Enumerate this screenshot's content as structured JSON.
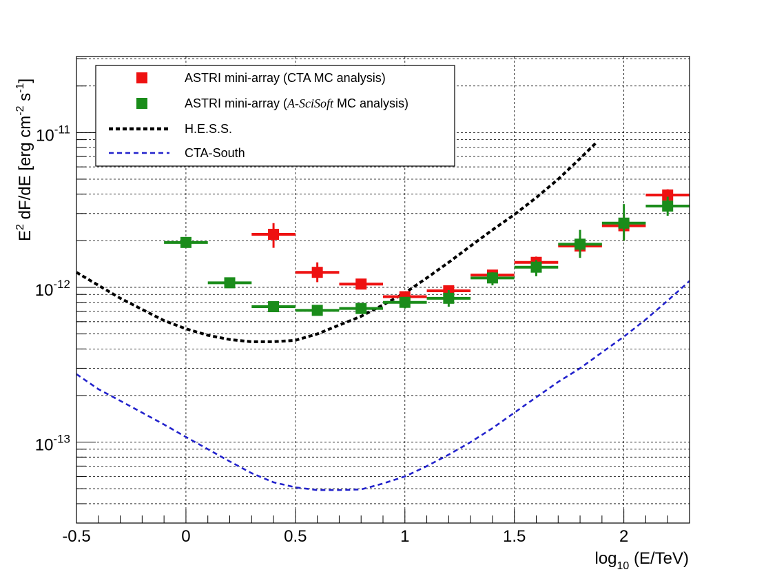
{
  "chart_data": {
    "type": "scatter",
    "title": "",
    "xlabel": {
      "main": "log",
      "sub": "10",
      "rest": " (E/TeV)"
    },
    "ylabel": {
      "a": "E",
      "a_sup": "2",
      "b": " dF/dE [erg cm",
      "b_sup": "-2",
      "c": " s",
      "c_sup": "-1",
      "d": "]"
    },
    "xlim": [
      -0.5,
      2.3
    ],
    "ylim": [
      3e-14,
      3.1e-11
    ],
    "yscale": "log",
    "grid": true,
    "x_ticks": [
      -0.5,
      0,
      0.5,
      1,
      1.5,
      2
    ],
    "x_tick_labels": [
      "-0.5",
      "0",
      "0.5",
      "1",
      "1.5",
      "2"
    ],
    "y_ticks": [
      1e-13,
      1e-12,
      1e-11
    ],
    "y_tick_labels": [
      {
        "base": "10",
        "exp": "-13"
      },
      {
        "base": "10",
        "exp": "-12"
      },
      {
        "base": "10",
        "exp": "-11"
      }
    ],
    "legend_position": "top-left",
    "legend": [
      {
        "label_parts": [
          {
            "t": "ASTRI mini-array (CTA MC analysis)",
            "italic": false
          }
        ],
        "color": "#ee1111",
        "kind": "marker"
      },
      {
        "label_parts": [
          {
            "t": "ASTRI mini-array (",
            "italic": false
          },
          {
            "t": "A-SciSoft",
            "italic": true
          },
          {
            "t": " MC analysis)",
            "italic": false
          }
        ],
        "color": "#1a8c1a",
        "kind": "marker"
      },
      {
        "label_parts": [
          {
            "t": "H.E.S.S.",
            "italic": false
          }
        ],
        "color": "#000000",
        "kind": "dashed-thick"
      },
      {
        "label_parts": [
          {
            "t": "CTA-South",
            "italic": false
          }
        ],
        "color": "#2222cc",
        "kind": "dashed-thin"
      }
    ],
    "series": [
      {
        "name": "ASTRI mini-array (CTA MC analysis)",
        "kind": "points",
        "color": "#ee1111",
        "x": [
          0.4,
          0.6,
          0.8,
          1.0,
          1.2,
          1.4,
          1.6,
          1.8,
          2.0,
          2.2
        ],
        "y": [
          2.2e-12,
          1.25e-12,
          1.05e-12,
          8.7e-13,
          9.5e-13,
          1.2e-12,
          1.45e-12,
          1.85e-12,
          2.5e-12,
          3.95e-12
        ],
        "x_err": 0.1,
        "y_lo": [
          1.8e-12,
          1.08e-12,
          9.7e-13,
          7.9e-13,
          8.7e-13,
          1.12e-12,
          1.33e-12,
          1.6e-12,
          2e-12,
          3.6e-12
        ],
        "y_hi": [
          2.6e-12,
          1.45e-12,
          1.12e-12,
          9.4e-13,
          1.03e-12,
          1.28e-12,
          1.58e-12,
          2.1e-12,
          3e-12,
          4.3e-12
        ]
      },
      {
        "name": "ASTRI mini-array (A-SciSoft MC analysis)",
        "kind": "points",
        "color": "#1a8c1a",
        "x": [
          0.0,
          0.2,
          0.4,
          0.6,
          0.8,
          1.0,
          1.2,
          1.4,
          1.6,
          1.8,
          2.0,
          2.2
        ],
        "y": [
          1.95e-12,
          1.07e-12,
          7.5e-13,
          7.1e-13,
          7.3e-13,
          8e-13,
          8.5e-13,
          1.15e-12,
          1.35e-12,
          1.9e-12,
          2.6e-12,
          3.35e-12
        ],
        "x_err": 0.1,
        "y_lo": [
          1.85e-12,
          1.02e-12,
          7e-13,
          6.7e-13,
          6.9e-13,
          7.3e-13,
          7.5e-13,
          1.03e-12,
          1.18e-12,
          1.55e-12,
          2e-12,
          2.9e-12
        ],
        "y_hi": [
          2.05e-12,
          1.12e-12,
          8e-13,
          7.5e-13,
          7.7e-13,
          8.6e-13,
          9.6e-13,
          1.25e-12,
          1.5e-12,
          2.35e-12,
          3.45e-12,
          3.85e-12
        ]
      },
      {
        "name": "H.E.S.S.",
        "kind": "line",
        "color": "#000000",
        "x": [
          -0.5,
          -0.3,
          -0.1,
          0.0,
          0.1,
          0.2,
          0.3,
          0.4,
          0.5,
          0.6,
          0.7,
          0.8,
          0.9,
          1.0,
          1.1,
          1.2,
          1.3,
          1.4,
          1.5,
          1.6,
          1.7,
          1.8,
          1.87
        ],
        "y": [
          1.25e-12,
          8.5e-13,
          6.1e-13,
          5.4e-13,
          4.9e-13,
          4.6e-13,
          4.45e-13,
          4.45e-13,
          4.55e-13,
          5e-13,
          5.7e-13,
          6.5e-13,
          7.7e-13,
          9.2e-13,
          1.15e-12,
          1.45e-12,
          1.85e-12,
          2.35e-12,
          2.95e-12,
          3.8e-12,
          5e-12,
          6.8e-12,
          8.5e-12
        ]
      },
      {
        "name": "CTA-South",
        "kind": "line",
        "color": "#2222cc",
        "x": [
          -0.5,
          -0.4,
          -0.3,
          -0.2,
          -0.1,
          0.0,
          0.1,
          0.2,
          0.3,
          0.4,
          0.5,
          0.6,
          0.7,
          0.8,
          0.9,
          1.0,
          1.1,
          1.2,
          1.3,
          1.4,
          1.5,
          1.6,
          1.7,
          1.8,
          1.9,
          2.0,
          2.1,
          2.2,
          2.3
        ],
        "y": [
          2.75e-13,
          2.2e-13,
          1.85e-13,
          1.55e-13,
          1.3e-13,
          1.08e-13,
          9e-14,
          7.5e-14,
          6.3e-14,
          5.5e-14,
          5.1e-14,
          4.9e-14,
          4.9e-14,
          4.95e-14,
          5.4e-14,
          6e-14,
          7e-14,
          8.3e-14,
          1e-13,
          1.23e-13,
          1.55e-13,
          1.95e-13,
          2.45e-13,
          3e-13,
          3.8e-13,
          4.8e-13,
          6.2e-13,
          8.2e-13,
          1.1e-12
        ]
      }
    ]
  }
}
